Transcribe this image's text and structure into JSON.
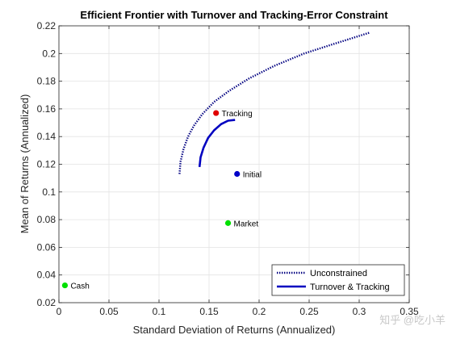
{
  "chart_data": {
    "type": "line",
    "title": "Efficient Frontier with Turnover and Tracking-Error Constraint",
    "xlabel": "Standard Deviation of Returns (Annualized)",
    "ylabel": "Mean of Returns (Annualized)",
    "xlim": [
      0,
      0.35
    ],
    "ylim": [
      0.02,
      0.22
    ],
    "xticks": [
      0,
      0.05,
      0.1,
      0.15,
      0.2,
      0.25,
      0.3,
      0.35
    ],
    "xtick_labels": [
      "0",
      "0.05",
      "0.1",
      "0.15",
      "0.2",
      "0.25",
      "0.3",
      "0.35"
    ],
    "yticks": [
      0.02,
      0.04,
      0.06,
      0.08,
      0.1,
      0.12,
      0.14,
      0.16,
      0.18,
      0.2,
      0.22
    ],
    "ytick_labels": [
      "0.02",
      "0.04",
      "0.06",
      "0.08",
      "0.1",
      "0.12",
      "0.14",
      "0.16",
      "0.18",
      "0.2",
      "0.22"
    ],
    "grid": true,
    "legend_position": "bottom-right",
    "series": [
      {
        "name": "Unconstrained",
        "color": "#000080",
        "style": "dotted",
        "x": [
          0.1205,
          0.1215,
          0.1245,
          0.129,
          0.135,
          0.143,
          0.155,
          0.17,
          0.19,
          0.215,
          0.245,
          0.275,
          0.31
        ],
        "y": [
          0.113,
          0.122,
          0.131,
          0.14,
          0.148,
          0.156,
          0.165,
          0.173,
          0.182,
          0.191,
          0.2,
          0.207,
          0.215
        ]
      },
      {
        "name": "Turnover & Tracking",
        "color": "#0000c0",
        "style": "solid",
        "x": [
          0.1405,
          0.1415,
          0.1445,
          0.149,
          0.155,
          0.162,
          0.169,
          0.176
        ],
        "y": [
          0.118,
          0.125,
          0.132,
          0.139,
          0.1445,
          0.149,
          0.1515,
          0.152
        ]
      }
    ],
    "points": [
      {
        "label": "Tracking",
        "x": 0.157,
        "y": 0.157,
        "color": "#e00000"
      },
      {
        "label": "Initial",
        "x": 0.178,
        "y": 0.113,
        "color": "#0000c8"
      },
      {
        "label": "Market",
        "x": 0.169,
        "y": 0.0775,
        "color": "#00e000"
      },
      {
        "label": "Cash",
        "x": 0.006,
        "y": 0.0325,
        "color": "#00e000"
      }
    ]
  },
  "watermark": "知乎 @吃小羊"
}
